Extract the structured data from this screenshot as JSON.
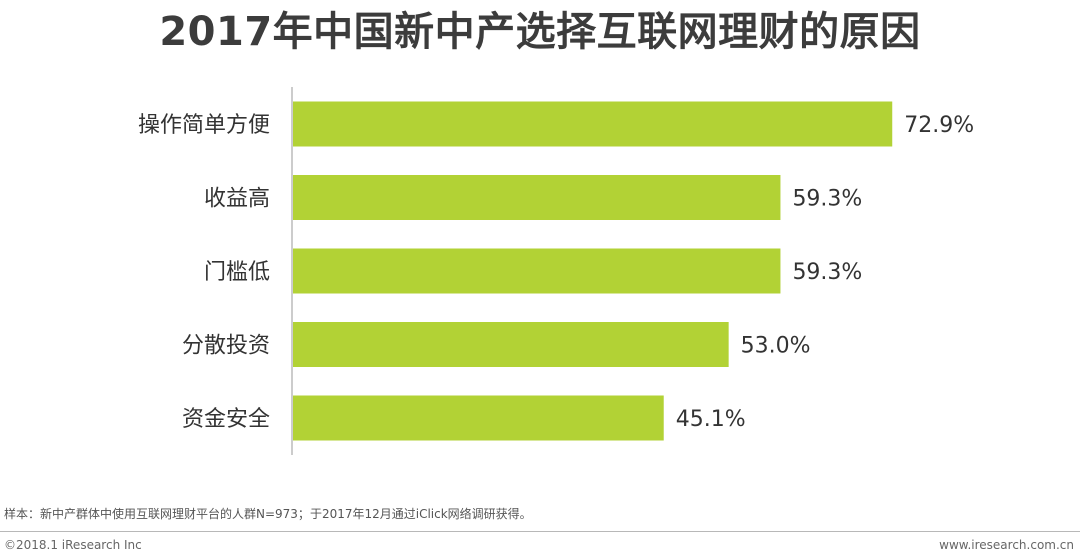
{
  "header": {
    "title": "2017年中国新中产选择互联网理财的原因"
  },
  "chart_data": {
    "type": "bar",
    "orientation": "horizontal",
    "title": "2017年中国新中产选择互联网理财的原因",
    "categories": [
      "操作简单方便",
      "收益高",
      "门槛低",
      "分散投资",
      "资金安全"
    ],
    "values": [
      72.9,
      59.3,
      59.3,
      53.0,
      45.1
    ],
    "value_labels": [
      "72.9%",
      "59.3%",
      "59.3%",
      "53.0%",
      "45.1%"
    ],
    "unit": "%",
    "xlim": [
      0,
      80
    ],
    "grid": false,
    "legend": "none",
    "bar_color": "#b2d235",
    "axis_color": "#999999"
  },
  "footer": {
    "note": "样本：新中产群体中使用互联网理财平台的人群N=973；于2017年12月通过iClick网络调研获得。",
    "copyright": "©2018.1 iResearch Inc",
    "website": "www.iresearch.com.cn"
  }
}
